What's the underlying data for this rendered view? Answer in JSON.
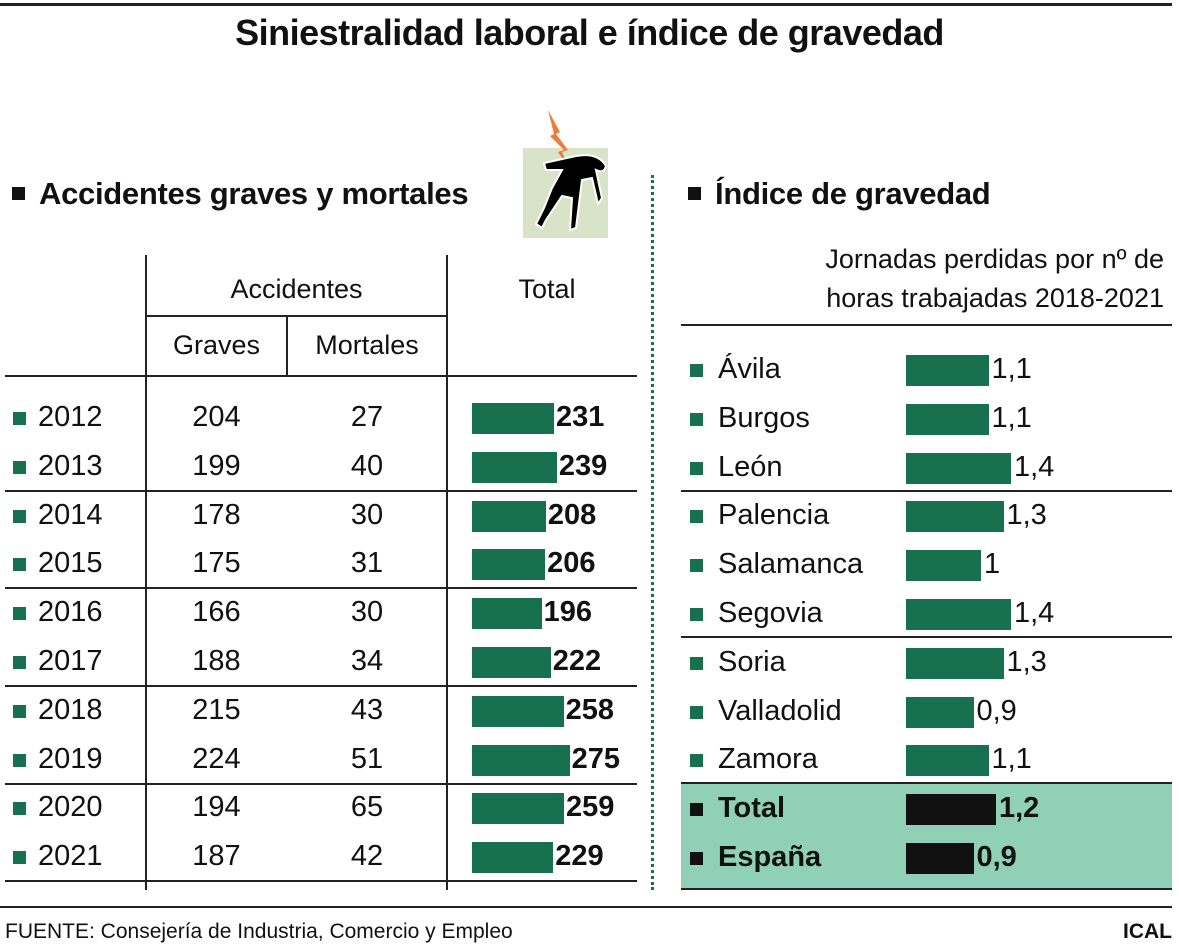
{
  "title": "Siniestralidad laboral e índice de gravedad",
  "colors": {
    "bar": "#17714f",
    "highlight_bg": "#8fd0b6",
    "icon_bg": "#d8e3c8",
    "bolt": "#f07a38",
    "dark": "#111111"
  },
  "left": {
    "heading": "Accidentes graves y mortales",
    "icon": "injured-worker-electric-shock-icon",
    "headers": {
      "group": "Accidentes",
      "graves": "Graves",
      "mortales": "Mortales",
      "total": "Total"
    }
  },
  "right": {
    "heading": "Índice de gravedad",
    "subtitle_line1": "Jornadas perdidas por nº de",
    "subtitle_line2": "horas trabajadas 2018-2021"
  },
  "chart_data": [
    {
      "type": "bar",
      "title": "Accidentes graves y mortales",
      "categories": [
        "2012",
        "2013",
        "2014",
        "2015",
        "2016",
        "2017",
        "2018",
        "2019",
        "2020",
        "2021"
      ],
      "graves": [
        204,
        199,
        178,
        175,
        166,
        188,
        215,
        224,
        194,
        187
      ],
      "mortales": [
        27,
        40,
        30,
        31,
        30,
        34,
        43,
        51,
        65,
        42
      ],
      "values": [
        231,
        239,
        208,
        206,
        196,
        222,
        258,
        275,
        259,
        229
      ],
      "labels": [
        "231",
        "239",
        "208",
        "206",
        "196",
        "222",
        "258",
        "275",
        "259",
        "229"
      ]
    },
    {
      "type": "bar",
      "title": "Índice de gravedad",
      "categories": [
        "Ávila",
        "Burgos",
        "León",
        "Palencia",
        "Salamanca",
        "Segovia",
        "Soria",
        "Valladolid",
        "Zamora",
        "Total",
        "España"
      ],
      "values": [
        1.1,
        1.1,
        1.4,
        1.3,
        1,
        1.4,
        1.3,
        0.9,
        1.1,
        1.2,
        0.9
      ],
      "labels": [
        "1,1",
        "1,1",
        "1,4",
        "1,3",
        "1",
        "1,4",
        "1,3",
        "0,9",
        "1,1",
        "1,2",
        "0,9"
      ],
      "highlighted": [
        "Total",
        "España"
      ]
    }
  ],
  "footer": {
    "source": "FUENTE: Consejería de Industria, Comercio y Empleo",
    "credit": "ICAL"
  }
}
